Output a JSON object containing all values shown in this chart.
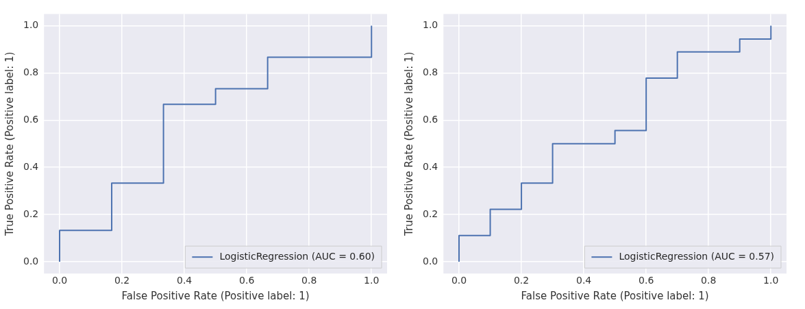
{
  "chart_data": [
    {
      "type": "line",
      "xlabel": "False Positive Rate (Positive label: 1)",
      "ylabel": "True Positive Rate (Positive label: 1)",
      "xlim": [
        -0.05,
        1.05
      ],
      "ylim": [
        -0.05,
        1.05
      ],
      "xticks": [
        {
          "value": 0,
          "label": "0.0"
        },
        {
          "value": 0.2,
          "label": "0.2"
        },
        {
          "value": 0.4,
          "label": "0.4"
        },
        {
          "value": 0.6,
          "label": "0.6"
        },
        {
          "value": 0.8,
          "label": "0.8"
        },
        {
          "value": 1,
          "label": "1.0"
        }
      ],
      "yticks": [
        {
          "value": 0,
          "label": "0.0"
        },
        {
          "value": 0.2,
          "label": "0.2"
        },
        {
          "value": 0.4,
          "label": "0.4"
        },
        {
          "value": 0.6,
          "label": "0.6"
        },
        {
          "value": 0.8,
          "label": "0.8"
        },
        {
          "value": 1,
          "label": "1.0"
        }
      ],
      "grid": true,
      "legend": "bottom right",
      "marker": "none",
      "line_style": "solid",
      "series": [
        {
          "name": "LogisticRegression (AUC = 0.60)",
          "color": "#4c72b0",
          "x": [
            0,
            0,
            0.167,
            0.167,
            0.333,
            0.333,
            0.5,
            0.5,
            0.667,
            0.667,
            1,
            1
          ],
          "values": [
            0,
            0.133,
            0.133,
            0.333,
            0.333,
            0.667,
            0.667,
            0.733,
            0.733,
            0.867,
            0.867,
            1
          ]
        }
      ]
    },
    {
      "type": "line",
      "xlabel": "False Positive Rate (Positive label: 1)",
      "ylabel": "True Positive Rate (Positive label: 1)",
      "xlim": [
        -0.05,
        1.05
      ],
      "ylim": [
        -0.05,
        1.05
      ],
      "xticks": [
        {
          "value": 0,
          "label": "0.0"
        },
        {
          "value": 0.2,
          "label": "0.2"
        },
        {
          "value": 0.4,
          "label": "0.4"
        },
        {
          "value": 0.6,
          "label": "0.6"
        },
        {
          "value": 0.8,
          "label": "0.8"
        },
        {
          "value": 1,
          "label": "1.0"
        }
      ],
      "yticks": [
        {
          "value": 0,
          "label": "0.0"
        },
        {
          "value": 0.2,
          "label": "0.2"
        },
        {
          "value": 0.4,
          "label": "0.4"
        },
        {
          "value": 0.6,
          "label": "0.6"
        },
        {
          "value": 0.8,
          "label": "0.8"
        },
        {
          "value": 1,
          "label": "1.0"
        }
      ],
      "grid": true,
      "legend": "bottom right",
      "marker": "none",
      "line_style": "solid",
      "series": [
        {
          "name": "LogisticRegression (AUC = 0.57)",
          "color": "#4c72b0",
          "x": [
            0,
            0,
            0.1,
            0.1,
            0.2,
            0.2,
            0.3,
            0.3,
            0.5,
            0.5,
            0.6,
            0.6,
            0.7,
            0.7,
            0.9,
            0.9,
            1,
            1
          ],
          "values": [
            0,
            0.111,
            0.111,
            0.222,
            0.222,
            0.333,
            0.333,
            0.5,
            0.5,
            0.556,
            0.556,
            0.778,
            0.778,
            0.889,
            0.889,
            0.944,
            0.944,
            1
          ]
        }
      ]
    }
  ]
}
